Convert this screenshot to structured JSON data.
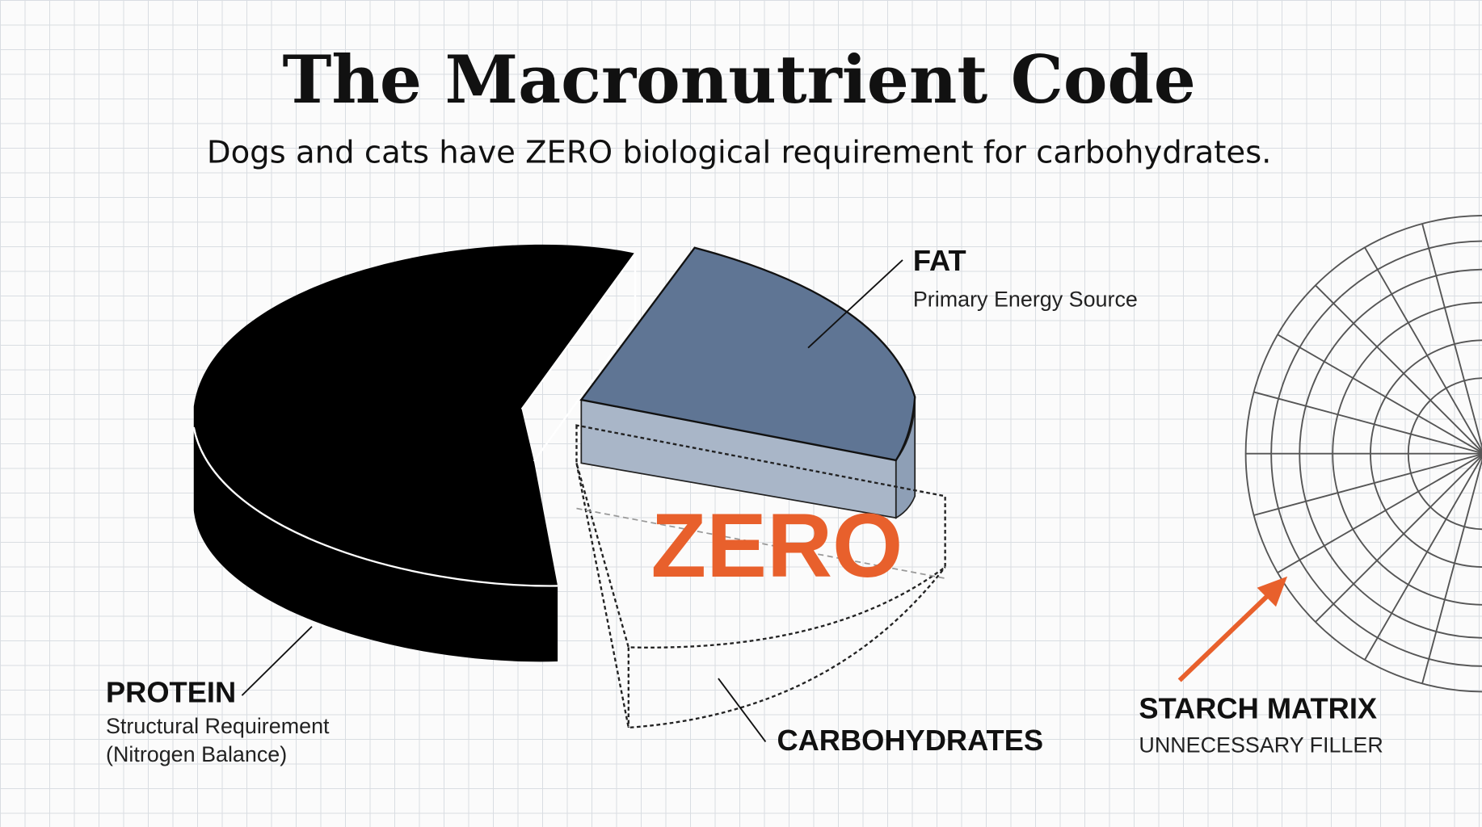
{
  "header": {
    "title": "The Macronutrient Code",
    "subtitle": "Dogs and cats have ZERO biological requirement for carbohydrates."
  },
  "labels": {
    "fat": {
      "title": "FAT",
      "subtitle": "Primary Energy Source"
    },
    "protein": {
      "title": "PROTEIN",
      "lines": [
        "Structural Requirement",
        "(Nitrogen Balance)"
      ]
    },
    "carbohydrates": {
      "title": "CARBOHYDRATES",
      "callout": "ZERO"
    },
    "starch_matrix": {
      "title": "STARCH MATRIX",
      "subtitle": "UNNECESSARY FILLER"
    }
  }
}
